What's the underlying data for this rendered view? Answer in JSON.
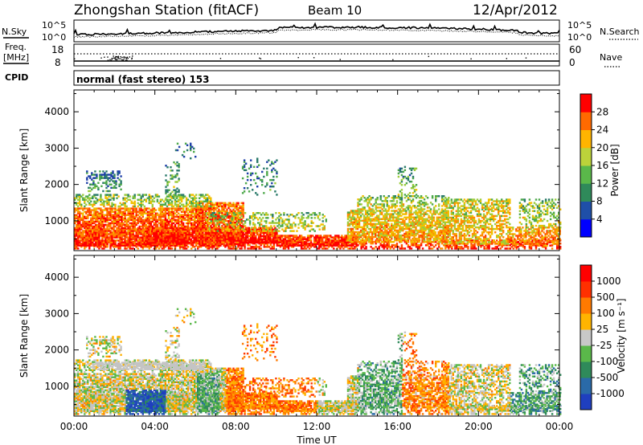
{
  "header": {
    "title": "Zhongshan Station (fitACF)",
    "beam": "Beam 10",
    "date": "12/Apr/2012"
  },
  "noise_panel": {
    "left_label": "N.Sky",
    "right_label": "N.Search",
    "left_ticks": [
      "10^5",
      "10^0"
    ],
    "right_ticks": [
      "10^5",
      "10^0"
    ]
  },
  "freq_panel": {
    "left_label_1": "Freq.",
    "left_label_2": "[MHz]",
    "left_ticks": [
      "18",
      "8"
    ],
    "right_label": "Nave",
    "right_ticks": [
      "60",
      "0"
    ]
  },
  "cpid": {
    "label": "CPID",
    "value": "normal (fast stereo) 153"
  },
  "chart_data": [
    {
      "type": "heatmap",
      "name": "Power",
      "xlabel": "",
      "ylabel": "Slant Range [km]",
      "xlim": [
        "00:00",
        "24:00"
      ],
      "ylim": [
        180,
        4600
      ],
      "y_ticks": [
        1000,
        2000,
        3000,
        4000
      ],
      "colorbar": {
        "label": "Power [dB]",
        "ticks": [
          "28",
          "24",
          "20",
          "16",
          "12",
          "8",
          "4"
        ],
        "range": [
          0,
          30
        ],
        "colors": [
          "#0000ff",
          "#1f4fa8",
          "#2f8a5a",
          "#5ab84a",
          "#bcd23a",
          "#ffb400",
          "#ff6a00",
          "#ff0000"
        ]
      }
    },
    {
      "type": "heatmap",
      "name": "Velocity",
      "xlabel": "Time UT",
      "ylabel": "Slant Range [km]",
      "xlim": [
        "00:00",
        "24:00"
      ],
      "ylim": [
        180,
        4600
      ],
      "y_ticks": [
        1000,
        2000,
        3000,
        4000
      ],
      "x_ticks": [
        "00:00",
        "04:00",
        "08:00",
        "12:00",
        "16:00",
        "20:00",
        "00:00"
      ],
      "colorbar": {
        "label": "Velocity [m s⁻¹]",
        "ticks": [
          "1000",
          "500",
          "100",
          "25",
          "-25",
          "-100",
          "-500",
          "-1000"
        ],
        "colors": [
          "#1f3fbf",
          "#2a6aa8",
          "#2f8a5a",
          "#5ab84a",
          "#c8c8c8",
          "#ffb400",
          "#ff7a00",
          "#ff3000",
          "#ff0000"
        ]
      }
    }
  ],
  "palette": {
    "power": [
      "#1e40a8",
      "#2a7a6a",
      "#4da84a",
      "#9ccc3c",
      "#f0c000",
      "#ff8a00",
      "#ff4a00",
      "#ff0000"
    ],
    "velocity": [
      "#1f3fbf",
      "#2a6aa8",
      "#2f8a5a",
      "#5ab84a",
      "#c4c4c4",
      "#ffb000",
      "#ff7a00",
      "#ff3a00",
      "#ff0000"
    ]
  }
}
